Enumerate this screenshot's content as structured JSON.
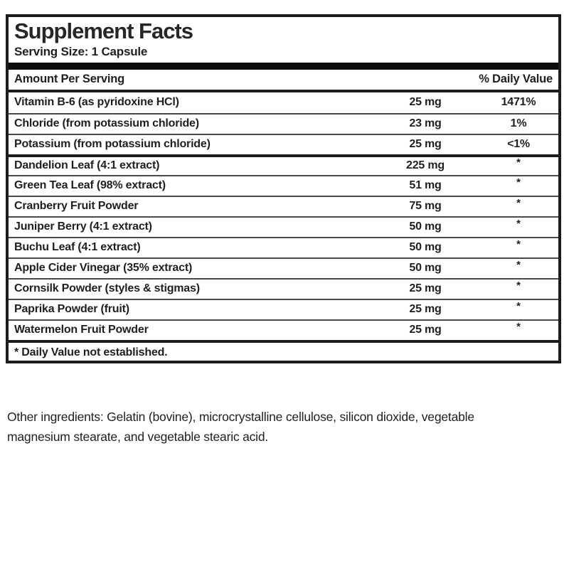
{
  "label": {
    "title": "Supplement Facts",
    "serving_size": "Serving Size: 1 Capsule",
    "header": {
      "amount_per_serving": "Amount Per Serving",
      "daily_value": "% Daily Value"
    },
    "rows": [
      {
        "name": "Vitamin B-6 (as pyridoxine HCl)",
        "amount": "25 mg",
        "dv": "1471%"
      },
      {
        "name": "Chloride (from potassium chloride)",
        "amount": "23 mg",
        "dv": "1%"
      },
      {
        "name": "Potassium (from potassium chloride)",
        "amount": "25 mg",
        "dv": "<1%"
      },
      {
        "name": "Dandelion Leaf (4:1 extract)",
        "amount": "225 mg",
        "dv": "*"
      },
      {
        "name": "Green Tea Leaf (98% extract)",
        "amount": "51 mg",
        "dv": "*"
      },
      {
        "name": "Cranberry Fruit Powder",
        "amount": "75 mg",
        "dv": "*"
      },
      {
        "name": "Juniper Berry (4:1 extract)",
        "amount": "50 mg",
        "dv": "*"
      },
      {
        "name": "Buchu Leaf (4:1 extract)",
        "amount": "50 mg",
        "dv": "*"
      },
      {
        "name": "Apple Cider Vinegar (35% extract)",
        "amount": "50 mg",
        "dv": "*"
      },
      {
        "name": "Cornsilk Powder (styles & stigmas)",
        "amount": "25 mg",
        "dv": "*"
      },
      {
        "name": "Paprika Powder (fruit)",
        "amount": "25 mg",
        "dv": "*"
      },
      {
        "name": "Watermelon Fruit Powder",
        "amount": "25 mg",
        "dv": "*"
      }
    ],
    "group_start_index": 3,
    "footnote": "* Daily Value not established.",
    "other_ingredients": "Other ingredients: Gelatin (bovine), microcrystalline cellulose, silicon dioxide, vegetable magnesium stearate, and vegetable stearic acid."
  },
  "colors": {
    "text": "#1f1f1f",
    "heavy_rule": "#1c1c1c",
    "thin_rule": "#4a4a4a",
    "thick_bar": "#0d0d0d",
    "background": "#ffffff"
  }
}
